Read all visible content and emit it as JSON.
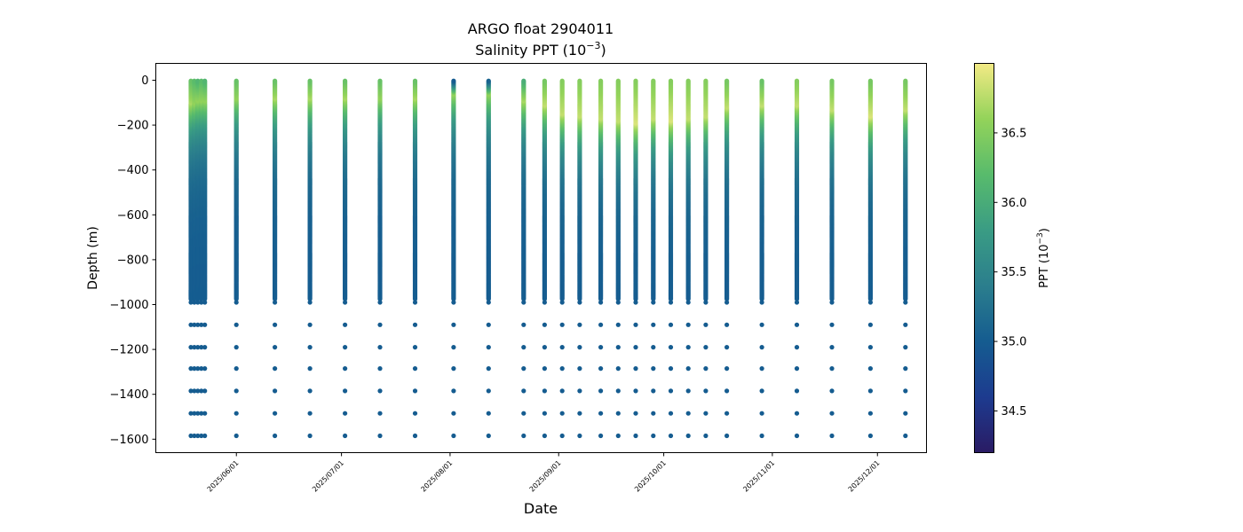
{
  "figure": {
    "title_line1": "ARGO float 2904011",
    "title_line2_prefix": "Salinity PPT (10",
    "title_line2_exp": "−3",
    "title_line2_suffix": ")"
  },
  "colorbar": {
    "label_prefix": "PPT (10",
    "label_exp": "−3",
    "label_suffix": ")",
    "range": [
      34.2,
      37.0
    ],
    "ticks": [
      "34.5",
      "35.0",
      "35.5",
      "36.0",
      "36.5"
    ],
    "colormap": "haline",
    "colormap_stops": [
      "#2a1b64",
      "#1d3b8f",
      "#155c90",
      "#2b7e8d",
      "#3a9c84",
      "#58bb6c",
      "#93d35a",
      "#f3ea85"
    ]
  },
  "chart_data": {
    "type": "scatter",
    "title": "ARGO float 2904011\nSalinity PPT (10^-3)",
    "xlabel": "Date",
    "ylabel": "Depth (m)",
    "xlim": [
      "2025-05-09",
      "2025-12-15"
    ],
    "ylim": [
      -1660,
      75
    ],
    "x_ticks": [
      "2025/06/01",
      "2025/07/01",
      "2025/08/01",
      "2025/09/01",
      "2025/10/01",
      "2025/11/01",
      "2025/12/01"
    ],
    "y_ticks": [
      "0",
      "−200",
      "−400",
      "−600",
      "−800",
      "−1000",
      "−1200",
      "−1400",
      "−1600"
    ],
    "grid": false,
    "profile_dates": [
      "2025-05-19",
      "2025-05-20",
      "2025-05-21",
      "2025-05-22",
      "2025-05-23",
      "2025-06-01",
      "2025-06-12",
      "2025-06-22",
      "2025-07-02",
      "2025-07-12",
      "2025-07-22",
      "2025-08-02",
      "2025-08-12",
      "2025-08-22",
      "2025-08-28",
      "2025-09-02",
      "2025-09-07",
      "2025-09-13",
      "2025-09-18",
      "2025-09-23",
      "2025-09-28",
      "2025-10-03",
      "2025-10-08",
      "2025-10-13",
      "2025-10-19",
      "2025-10-29",
      "2025-11-08",
      "2025-11-18",
      "2025-11-29",
      "2025-12-09"
    ],
    "deep_sample_depths": [
      -990,
      -1090,
      -1190,
      -1285,
      -1385,
      -1485,
      -1585
    ],
    "continuous_profile_range": [
      -975,
      0
    ],
    "surface_salinity": [
      36.3,
      36.2,
      36.1,
      36.2,
      36.1,
      36.3,
      36.3,
      36.3,
      36.3,
      36.3,
      36.3,
      34.9,
      35.0,
      36.0,
      36.4,
      36.5,
      36.5,
      36.5,
      36.5,
      36.5,
      36.5,
      36.5,
      36.5,
      36.5,
      36.4,
      36.3,
      36.5,
      36.4,
      36.4,
      36.4
    ],
    "subsurface_max_salinity": [
      36.7,
      36.6,
      36.6,
      36.6,
      36.6,
      36.6,
      36.7,
      36.7,
      36.7,
      36.6,
      36.7,
      36.6,
      36.6,
      36.7,
      36.8,
      36.8,
      36.8,
      36.8,
      36.8,
      36.9,
      36.8,
      36.9,
      36.8,
      36.8,
      36.8,
      36.8,
      36.8,
      36.8,
      36.9,
      36.8
    ],
    "subsurface_max_depth": [
      -100,
      -100,
      -90,
      -90,
      -90,
      -80,
      -80,
      -80,
      -80,
      -80,
      -80,
      -60,
      -60,
      -90,
      -110,
      -150,
      -160,
      -170,
      -180,
      -190,
      -170,
      -180,
      -170,
      -160,
      -120,
      -110,
      -110,
      -130,
      -160,
      -130
    ],
    "deep_salinity": 35.0
  }
}
